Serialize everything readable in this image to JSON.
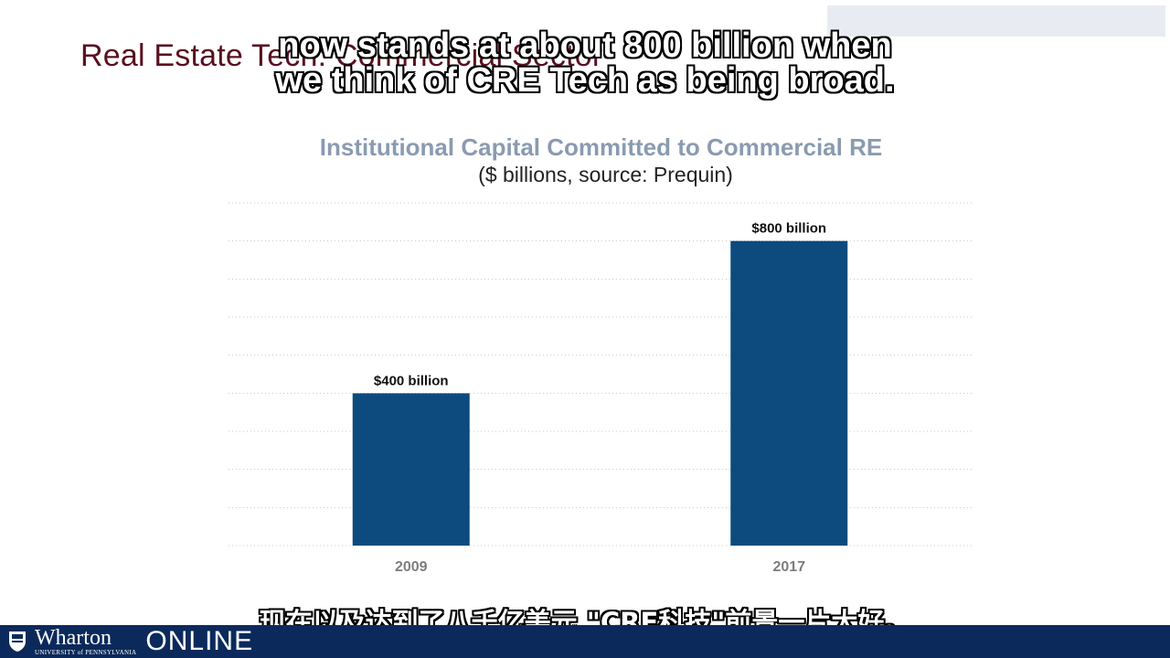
{
  "slide": {
    "title": "Real Estate Tech: Commercial Sector"
  },
  "captions": {
    "en_line1": "now stands at about 800 billion when",
    "en_line2": "we think of CRE Tech as being broad.",
    "zh": "现在以及达到了八千亿美元 \"CRE科技\"前景一片大好。"
  },
  "chart_data": {
    "type": "bar",
    "title": "Institutional Capital Committed to Commercial RE",
    "subtitle": "($ billions, source:  Prequin)",
    "categories": [
      "2009",
      "2017"
    ],
    "values": [
      400,
      800
    ],
    "data_labels": [
      "$400 billion",
      "$800 billion"
    ],
    "ylim": [
      0,
      900
    ],
    "grid": true,
    "bar_color": "#0d4a7e"
  },
  "footer": {
    "brand_name": "Wharton",
    "brand_sub": "UNIVERSITY of PENNSYLVANIA",
    "brand_online": "ONLINE",
    "background": "#0b2a5b"
  }
}
